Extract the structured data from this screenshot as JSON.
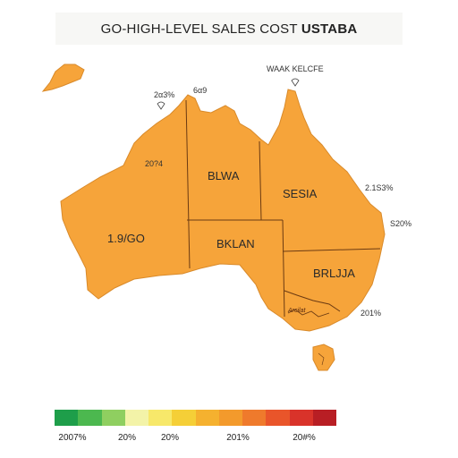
{
  "title": {
    "text": "GO-HIGH-LEVEL SALES COST ",
    "bold": "USTABA"
  },
  "annotations": {
    "top_right_note": "WAAK KELCFE",
    "nw_top_1": "2α3%",
    "nw_top_2": "6α9",
    "wa_upper": "20?4",
    "wa_main": "1.9/GO",
    "nt": "BLWA",
    "qld": "SESIA",
    "sa": "BKLAN",
    "nsw": "BRLJJA",
    "vic": "Arcilat",
    "qld_east_1": "2.1S3%",
    "qld_east_2": "S20%",
    "nsw_east": "201%"
  },
  "legend": {
    "colors": [
      "#1e9e4a",
      "#4cb84f",
      "#8fcf60",
      "#f3f3a8",
      "#f7e86a",
      "#f5cf37",
      "#f5b12f",
      "#f39a2c",
      "#ef7a2c",
      "#e9552a",
      "#d9332a",
      "#b81e24"
    ],
    "ticks": [
      "2007%",
      "20%",
      "20%",
      "201%",
      "20#%"
    ]
  },
  "colors": {
    "land": "#f6a43a",
    "border": "#6b3a12"
  }
}
